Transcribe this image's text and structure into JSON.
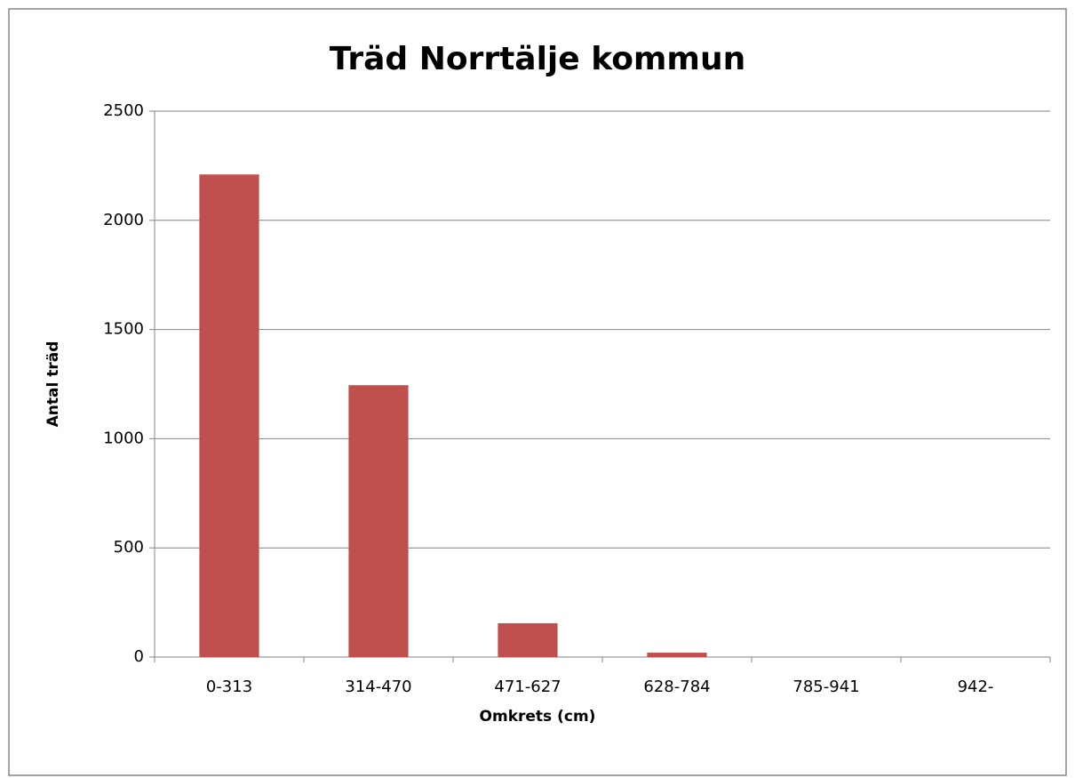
{
  "chart_data": {
    "type": "bar",
    "title": "Träd Norrtälje kommun",
    "x_label": "Omkrets (cm)",
    "y_label": "Antal träd",
    "categories": [
      "0-313",
      "314-470",
      "471-627",
      "628-784",
      "785-941",
      "942-"
    ],
    "values": [
      2210,
      1245,
      155,
      20,
      0,
      0
    ],
    "color": "#c0504d",
    "ylim": [
      0,
      2500
    ],
    "yticks": [
      0,
      500,
      1000,
      1500,
      2000,
      2500
    ],
    "grid": true
  }
}
